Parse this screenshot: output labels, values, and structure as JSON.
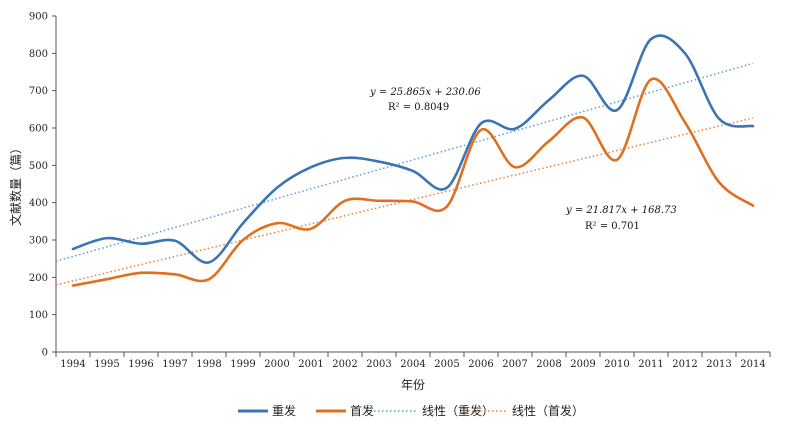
{
  "chart_data": {
    "type": "line",
    "xlabel": "年份",
    "ylabel": "文献数量（篇）",
    "ylim": [
      0,
      900
    ],
    "y_ticks": [
      "0",
      "100",
      "200",
      "300",
      "400",
      "500",
      "600",
      "700",
      "800",
      "900"
    ],
    "categories": [
      "1994",
      "1995",
      "1996",
      "1997",
      "1998",
      "1999",
      "2000",
      "2001",
      "2002",
      "2003",
      "2004",
      "2005",
      "2006",
      "2007",
      "2008",
      "2009",
      "2010",
      "2011",
      "2012",
      "2013",
      "2014"
    ],
    "grid": false,
    "legend_position": "bottom",
    "series": [
      {
        "name": "重发",
        "style": "solid",
        "color": "#3b74b5",
        "values": [
          276,
          305,
          290,
          298,
          240,
          345,
          440,
          495,
          520,
          510,
          485,
          440,
          612,
          598,
          675,
          740,
          648,
          838,
          800,
          625,
          605
        ]
      },
      {
        "name": "首发",
        "style": "solid",
        "color": "#e06f1f",
        "values": [
          178,
          195,
          212,
          208,
          195,
          300,
          345,
          330,
          405,
          405,
          403,
          390,
          595,
          495,
          565,
          628,
          515,
          730,
          615,
          455,
          392
        ]
      },
      {
        "name": "线性（重发）",
        "style": "dotted",
        "color": "#5b9bd5",
        "trend": {
          "slope": 25.865,
          "intercept": 230.06
        }
      },
      {
        "name": "线性（首发）",
        "style": "dotted",
        "color": "#ed7d31",
        "trend": {
          "slope": 21.817,
          "intercept": 168.73
        }
      }
    ],
    "annotations": [
      {
        "line1": "y = 25.865x + 230.06",
        "line2": "R² = 0.8049"
      },
      {
        "line1": "y = 21.817x + 168.73",
        "line2": "R² = 0.701"
      }
    ]
  }
}
